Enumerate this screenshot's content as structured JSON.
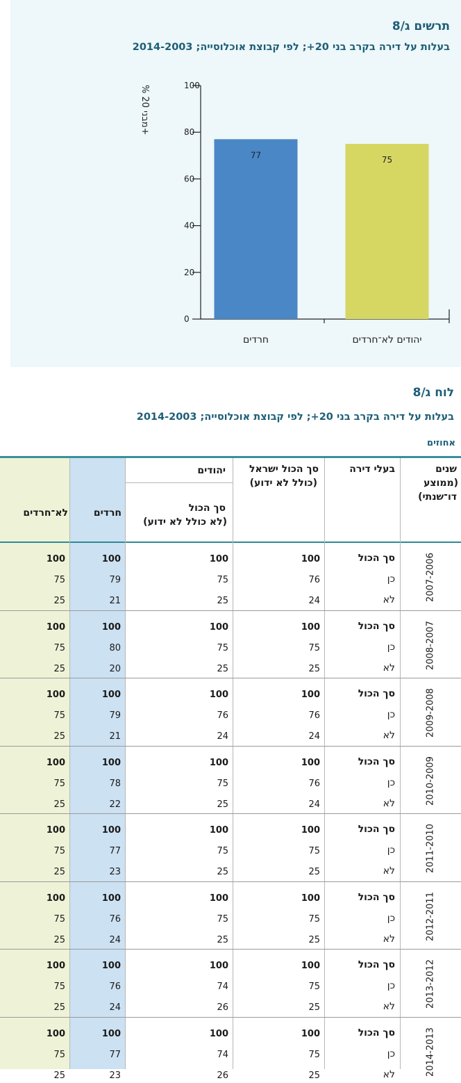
{
  "chart": {
    "title": "תרשים ג/8",
    "subtitle": "בעלות על דירה בקרב בני 20+; לפי קבוצת אוכלוסייה; 2014-2003"
  },
  "chart_data": {
    "type": "bar",
    "title": "בעלות על דירה בקרב בני 20+; לפי קבוצת אוכלוסייה; 2014-2003",
    "ylabel": "% מבני 20+",
    "ylim": [
      0,
      100
    ],
    "yticks": [
      "0",
      "20",
      "40",
      "60",
      "80",
      "100"
    ],
    "categories": [
      "חרדים",
      "יהודים לא־חרדים"
    ],
    "values": [
      77,
      75
    ],
    "colors": [
      "#4a87c6",
      "#d6d763"
    ],
    "grid": false
  },
  "table": {
    "title": "לוח ג/8",
    "subtitle": "בעלות על דירה בקרב בני 20+; לפי קבוצת אוכלוסייה; 2014-2003",
    "unit": "אחוזים",
    "headers": {
      "years_l1": "שנים",
      "years_l2": "(ממוצע",
      "years_l3": "דו־שנתי)",
      "owner": "בעלי דירה",
      "total_l1": "סך הכול ישראל",
      "total_l2": "(כולל לא ידוע)",
      "jews": "יהודים",
      "jews_total_l1": "סך הכול",
      "jews_total_l2": "(לא כולל לא ידוע)",
      "haredim": "חרדים",
      "non_haredim": "לא־חרדים"
    },
    "row_labels": [
      "סך הכול",
      "כן",
      "לא"
    ],
    "groups": [
      {
        "years": "2007-2006",
        "rows": [
          [
            "100",
            "100",
            "100",
            "100"
          ],
          [
            "75",
            "76",
            "79",
            "75"
          ],
          [
            "25",
            "24",
            "21",
            "25"
          ]
        ]
      },
      {
        "years": "2008-2007",
        "rows": [
          [
            "100",
            "100",
            "100",
            "100"
          ],
          [
            "75",
            "75",
            "80",
            "75"
          ],
          [
            "25",
            "25",
            "20",
            "25"
          ]
        ]
      },
      {
        "years": "2009-2008",
        "rows": [
          [
            "100",
            "100",
            "100",
            "100"
          ],
          [
            "76",
            "76",
            "79",
            "75"
          ],
          [
            "24",
            "24",
            "21",
            "25"
          ]
        ]
      },
      {
        "years": "2010-2009",
        "rows": [
          [
            "100",
            "100",
            "100",
            "100"
          ],
          [
            "75",
            "76",
            "78",
            "75"
          ],
          [
            "25",
            "24",
            "22",
            "25"
          ]
        ]
      },
      {
        "years": "2011-2010",
        "rows": [
          [
            "100",
            "100",
            "100",
            "100"
          ],
          [
            "75",
            "75",
            "77",
            "75"
          ],
          [
            "25",
            "25",
            "23",
            "25"
          ]
        ]
      },
      {
        "years": "2012-2011",
        "rows": [
          [
            "100",
            "100",
            "100",
            "100"
          ],
          [
            "75",
            "75",
            "76",
            "75"
          ],
          [
            "25",
            "25",
            "24",
            "25"
          ]
        ]
      },
      {
        "years": "2013-2012",
        "rows": [
          [
            "100",
            "100",
            "100",
            "100"
          ],
          [
            "74",
            "75",
            "76",
            "75"
          ],
          [
            "26",
            "25",
            "24",
            "25"
          ]
        ]
      },
      {
        "years": "2014-2013",
        "rows": [
          [
            "100",
            "100",
            "100",
            "100"
          ],
          [
            "74",
            "75",
            "77",
            "75"
          ],
          [
            "26",
            "25",
            "23",
            "25"
          ]
        ]
      }
    ]
  }
}
